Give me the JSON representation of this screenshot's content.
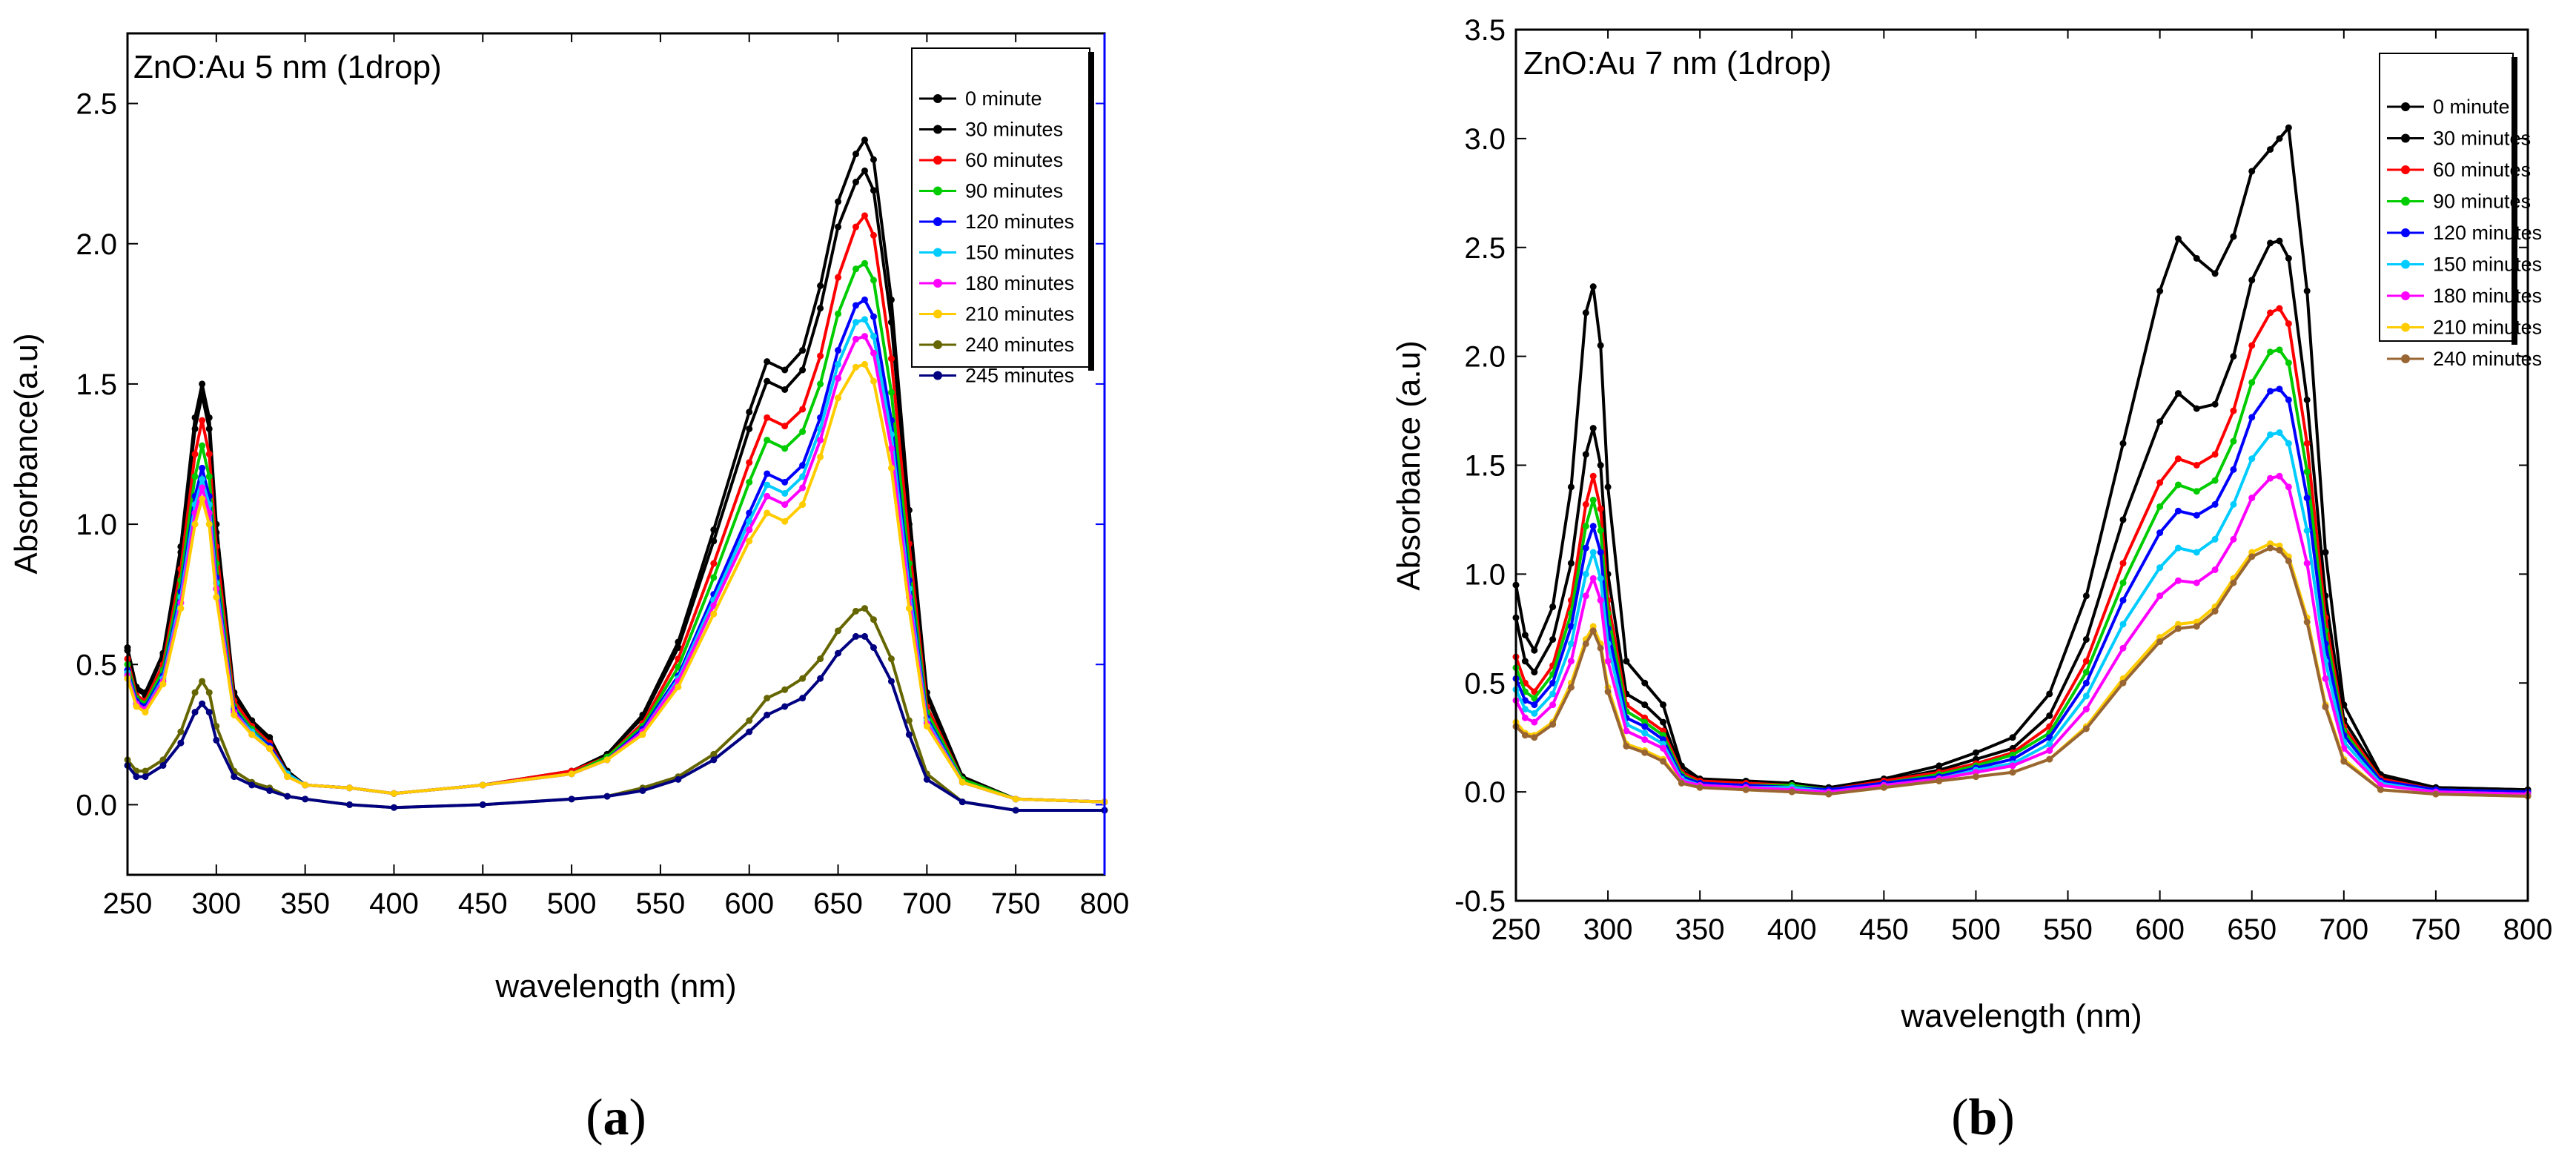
{
  "chart_data": [
    {
      "type": "line",
      "panel_label": "a",
      "title": "ZnO:Au 5 nm (1drop)",
      "xlabel": "wavelength (nm)",
      "ylabel": "Absorbance(a.u)",
      "xlim": [
        250,
        800
      ],
      "ylim": [
        -0.25,
        2.75
      ],
      "xticks": [
        250,
        300,
        350,
        400,
        450,
        500,
        550,
        600,
        650,
        700,
        750,
        800
      ],
      "yticks": [
        0.0,
        0.5,
        1.0,
        1.5,
        2.0,
        2.5
      ],
      "ytick_labels": [
        "0.0",
        "0.5",
        "1.0",
        "1.5",
        "2.0",
        "2.5"
      ],
      "legend_position": "top-right",
      "x": [
        250,
        255,
        260,
        270,
        280,
        288,
        292,
        296,
        300,
        310,
        320,
        330,
        340,
        350,
        375,
        400,
        450,
        500,
        520,
        540,
        560,
        580,
        600,
        610,
        620,
        630,
        640,
        650,
        660,
        665,
        670,
        680,
        690,
        700,
        720,
        750,
        800
      ],
      "series": [
        {
          "name": "0 minute",
          "color": "#000000",
          "values": [
            0.56,
            0.42,
            0.4,
            0.54,
            0.92,
            1.38,
            1.5,
            1.38,
            1.0,
            0.4,
            0.3,
            0.24,
            0.12,
            0.07,
            0.06,
            0.04,
            0.07,
            0.12,
            0.18,
            0.32,
            0.58,
            0.98,
            1.4,
            1.58,
            1.55,
            1.62,
            1.85,
            2.15,
            2.32,
            2.37,
            2.3,
            1.8,
            1.05,
            0.4,
            0.1,
            0.02,
            0.01
          ]
        },
        {
          "name": "30 minutes",
          "color": "#000000",
          "values": [
            0.55,
            0.41,
            0.39,
            0.53,
            0.9,
            1.34,
            1.46,
            1.34,
            0.97,
            0.39,
            0.29,
            0.23,
            0.12,
            0.07,
            0.06,
            0.04,
            0.07,
            0.12,
            0.18,
            0.31,
            0.56,
            0.94,
            1.34,
            1.51,
            1.48,
            1.55,
            1.77,
            2.06,
            2.22,
            2.26,
            2.19,
            1.72,
            1.0,
            0.38,
            0.1,
            0.02,
            0.01
          ]
        },
        {
          "name": "60 minutes",
          "color": "#ff0000",
          "values": [
            0.52,
            0.39,
            0.37,
            0.5,
            0.84,
            1.25,
            1.37,
            1.25,
            0.92,
            0.37,
            0.28,
            0.22,
            0.11,
            0.07,
            0.06,
            0.04,
            0.07,
            0.12,
            0.17,
            0.29,
            0.52,
            0.86,
            1.22,
            1.38,
            1.35,
            1.41,
            1.6,
            1.88,
            2.06,
            2.1,
            2.03,
            1.59,
            0.93,
            0.35,
            0.09,
            0.02,
            0.01
          ]
        },
        {
          "name": "90 minutes",
          "color": "#00cc00",
          "values": [
            0.5,
            0.38,
            0.36,
            0.48,
            0.8,
            1.17,
            1.28,
            1.17,
            0.86,
            0.35,
            0.27,
            0.21,
            0.11,
            0.07,
            0.06,
            0.04,
            0.07,
            0.11,
            0.17,
            0.28,
            0.49,
            0.81,
            1.15,
            1.3,
            1.27,
            1.33,
            1.5,
            1.75,
            1.91,
            1.93,
            1.87,
            1.47,
            0.86,
            0.33,
            0.09,
            0.02,
            0.01
          ]
        },
        {
          "name": "120 minutes",
          "color": "#0000ff",
          "values": [
            0.48,
            0.37,
            0.35,
            0.46,
            0.76,
            1.1,
            1.2,
            1.1,
            0.81,
            0.34,
            0.26,
            0.21,
            0.11,
            0.07,
            0.06,
            0.04,
            0.07,
            0.11,
            0.16,
            0.27,
            0.46,
            0.75,
            1.04,
            1.18,
            1.15,
            1.21,
            1.38,
            1.62,
            1.78,
            1.8,
            1.74,
            1.37,
            0.8,
            0.31,
            0.08,
            0.02,
            0.01
          ]
        },
        {
          "name": "150 minutes",
          "color": "#00ccff",
          "values": [
            0.47,
            0.36,
            0.34,
            0.45,
            0.74,
            1.07,
            1.16,
            1.07,
            0.79,
            0.33,
            0.26,
            0.2,
            0.11,
            0.07,
            0.06,
            0.04,
            0.07,
            0.11,
            0.16,
            0.26,
            0.45,
            0.73,
            1.01,
            1.14,
            1.11,
            1.17,
            1.34,
            1.57,
            1.72,
            1.73,
            1.67,
            1.32,
            0.77,
            0.3,
            0.08,
            0.02,
            0.01
          ]
        },
        {
          "name": "180 minutes",
          "color": "#ff00ff",
          "values": [
            0.46,
            0.36,
            0.34,
            0.44,
            0.72,
            1.04,
            1.13,
            1.04,
            0.77,
            0.33,
            0.25,
            0.2,
            0.1,
            0.07,
            0.06,
            0.04,
            0.07,
            0.11,
            0.16,
            0.26,
            0.44,
            0.71,
            0.98,
            1.1,
            1.07,
            1.13,
            1.3,
            1.52,
            1.66,
            1.67,
            1.61,
            1.27,
            0.74,
            0.29,
            0.08,
            0.02,
            0.01
          ]
        },
        {
          "name": "210 minutes",
          "color": "#ffcc00",
          "values": [
            0.45,
            0.35,
            0.33,
            0.43,
            0.7,
            1.0,
            1.09,
            1.0,
            0.74,
            0.32,
            0.25,
            0.2,
            0.1,
            0.07,
            0.06,
            0.04,
            0.07,
            0.11,
            0.16,
            0.25,
            0.42,
            0.68,
            0.94,
            1.04,
            1.01,
            1.07,
            1.24,
            1.45,
            1.56,
            1.57,
            1.51,
            1.2,
            0.7,
            0.28,
            0.08,
            0.02,
            0.01
          ]
        },
        {
          "name": "240 minutes",
          "color": "#666600",
          "values": [
            0.16,
            0.12,
            0.12,
            0.16,
            0.26,
            0.4,
            0.44,
            0.4,
            0.28,
            0.12,
            0.08,
            0.06,
            0.03,
            0.02,
            0.0,
            -0.01,
            0.0,
            0.02,
            0.03,
            0.06,
            0.1,
            0.18,
            0.3,
            0.38,
            0.41,
            0.45,
            0.52,
            0.62,
            0.69,
            0.7,
            0.66,
            0.52,
            0.3,
            0.11,
            0.01,
            -0.02,
            -0.02
          ]
        },
        {
          "name": "245 minutes",
          "color": "#000080",
          "values": [
            0.14,
            0.1,
            0.1,
            0.14,
            0.22,
            0.33,
            0.36,
            0.33,
            0.23,
            0.1,
            0.07,
            0.05,
            0.03,
            0.02,
            0.0,
            -0.01,
            0.0,
            0.02,
            0.03,
            0.05,
            0.09,
            0.16,
            0.26,
            0.32,
            0.35,
            0.38,
            0.45,
            0.54,
            0.6,
            0.6,
            0.56,
            0.44,
            0.25,
            0.09,
            0.01,
            -0.02,
            -0.02
          ]
        }
      ]
    },
    {
      "type": "line",
      "panel_label": "b",
      "title": "ZnO:Au 7 nm (1drop)",
      "xlabel": "wavelength (nm)",
      "ylabel": "Absorbance (a.u)",
      "xlim": [
        250,
        800
      ],
      "ylim": [
        -0.5,
        3.5
      ],
      "xticks": [
        250,
        300,
        350,
        400,
        450,
        500,
        550,
        600,
        650,
        700,
        750,
        800
      ],
      "yticks": [
        -0.5,
        0.0,
        0.5,
        1.0,
        1.5,
        2.0,
        2.5,
        3.0,
        3.5
      ],
      "ytick_labels": [
        "-0.5",
        "0.0",
        "0.5",
        "1.0",
        "1.5",
        "2.0",
        "2.5",
        "3.0",
        "3.5"
      ],
      "legend_position": "top-right",
      "x": [
        250,
        255,
        260,
        270,
        280,
        288,
        292,
        296,
        300,
        310,
        320,
        330,
        340,
        350,
        375,
        400,
        420,
        450,
        480,
        500,
        520,
        540,
        560,
        580,
        600,
        610,
        620,
        630,
        640,
        650,
        660,
        665,
        670,
        680,
        690,
        700,
        720,
        750,
        800
      ],
      "series": [
        {
          "name": "0 minute",
          "color": "#000000",
          "values": [
            0.95,
            0.72,
            0.65,
            0.85,
            1.4,
            2.2,
            2.32,
            2.05,
            1.4,
            0.6,
            0.5,
            0.4,
            0.12,
            0.06,
            0.05,
            0.04,
            0.02,
            0.06,
            0.12,
            0.18,
            0.25,
            0.45,
            0.9,
            1.6,
            2.3,
            2.54,
            2.45,
            2.38,
            2.55,
            2.85,
            2.95,
            3.0,
            3.05,
            2.3,
            1.1,
            0.4,
            0.08,
            0.02,
            0.01
          ]
        },
        {
          "name": "30 minutes",
          "color": "#000000",
          "values": [
            0.8,
            0.6,
            0.55,
            0.7,
            1.05,
            1.55,
            1.67,
            1.5,
            1.0,
            0.45,
            0.4,
            0.32,
            0.1,
            0.05,
            0.04,
            0.04,
            0.02,
            0.05,
            0.1,
            0.15,
            0.2,
            0.35,
            0.7,
            1.25,
            1.7,
            1.83,
            1.76,
            1.78,
            2.0,
            2.35,
            2.52,
            2.53,
            2.45,
            1.8,
            0.9,
            0.33,
            0.07,
            0.02,
            0.01
          ]
        },
        {
          "name": "60 minutes",
          "color": "#ff0000",
          "values": [
            0.62,
            0.5,
            0.46,
            0.58,
            0.88,
            1.32,
            1.45,
            1.3,
            0.88,
            0.4,
            0.34,
            0.28,
            0.09,
            0.05,
            0.04,
            0.03,
            0.01,
            0.05,
            0.09,
            0.13,
            0.18,
            0.3,
            0.6,
            1.05,
            1.42,
            1.53,
            1.5,
            1.55,
            1.75,
            2.05,
            2.2,
            2.22,
            2.15,
            1.6,
            0.8,
            0.3,
            0.06,
            0.01,
            0.0
          ]
        },
        {
          "name": "90 minutes",
          "color": "#00cc00",
          "values": [
            0.57,
            0.46,
            0.43,
            0.54,
            0.82,
            1.22,
            1.34,
            1.2,
            0.82,
            0.37,
            0.32,
            0.26,
            0.08,
            0.04,
            0.03,
            0.03,
            0.01,
            0.04,
            0.08,
            0.12,
            0.17,
            0.27,
            0.55,
            0.96,
            1.31,
            1.41,
            1.38,
            1.43,
            1.61,
            1.88,
            2.02,
            2.03,
            1.97,
            1.47,
            0.74,
            0.28,
            0.05,
            0.01,
            0.0
          ]
        },
        {
          "name": "120 minutes",
          "color": "#0000ff",
          "values": [
            0.52,
            0.42,
            0.4,
            0.5,
            0.76,
            1.12,
            1.22,
            1.1,
            0.75,
            0.34,
            0.3,
            0.24,
            0.07,
            0.04,
            0.03,
            0.02,
            0.01,
            0.04,
            0.07,
            0.11,
            0.15,
            0.25,
            0.5,
            0.88,
            1.19,
            1.29,
            1.27,
            1.32,
            1.48,
            1.72,
            1.84,
            1.85,
            1.8,
            1.35,
            0.68,
            0.26,
            0.05,
            0.01,
            0.0
          ]
        },
        {
          "name": "150 minutes",
          "color": "#00ccff",
          "values": [
            0.47,
            0.38,
            0.36,
            0.45,
            0.68,
            1.0,
            1.1,
            0.98,
            0.68,
            0.31,
            0.27,
            0.22,
            0.06,
            0.03,
            0.02,
            0.02,
            0.0,
            0.03,
            0.06,
            0.1,
            0.13,
            0.22,
            0.44,
            0.77,
            1.03,
            1.12,
            1.1,
            1.16,
            1.32,
            1.53,
            1.64,
            1.65,
            1.6,
            1.2,
            0.6,
            0.23,
            0.04,
            0.0,
            -0.01
          ]
        },
        {
          "name": "180 minutes",
          "color": "#ff00ff",
          "values": [
            0.42,
            0.34,
            0.32,
            0.4,
            0.6,
            0.9,
            0.98,
            0.88,
            0.6,
            0.28,
            0.24,
            0.2,
            0.05,
            0.03,
            0.02,
            0.01,
            0.0,
            0.03,
            0.06,
            0.09,
            0.12,
            0.19,
            0.38,
            0.66,
            0.9,
            0.97,
            0.96,
            1.02,
            1.16,
            1.35,
            1.44,
            1.45,
            1.4,
            1.05,
            0.52,
            0.2,
            0.03,
            0.0,
            -0.01
          ]
        },
        {
          "name": "210 minutes",
          "color": "#ffcc00",
          "values": [
            0.32,
            0.27,
            0.26,
            0.32,
            0.5,
            0.7,
            0.76,
            0.68,
            0.48,
            0.22,
            0.19,
            0.15,
            0.04,
            0.02,
            0.01,
            0.0,
            -0.01,
            0.02,
            0.05,
            0.07,
            0.09,
            0.15,
            0.3,
            0.52,
            0.71,
            0.77,
            0.78,
            0.85,
            0.98,
            1.1,
            1.14,
            1.13,
            1.08,
            0.8,
            0.4,
            0.15,
            0.01,
            -0.01,
            -0.02
          ]
        },
        {
          "name": "240 minutes",
          "color": "#996633",
          "values": [
            0.3,
            0.26,
            0.25,
            0.31,
            0.48,
            0.68,
            0.74,
            0.66,
            0.46,
            0.21,
            0.18,
            0.14,
            0.04,
            0.02,
            0.01,
            0.0,
            -0.01,
            0.02,
            0.05,
            0.07,
            0.09,
            0.15,
            0.29,
            0.5,
            0.69,
            0.75,
            0.76,
            0.83,
            0.96,
            1.08,
            1.12,
            1.11,
            1.06,
            0.78,
            0.39,
            0.14,
            0.01,
            -0.01,
            -0.02
          ]
        }
      ]
    }
  ]
}
